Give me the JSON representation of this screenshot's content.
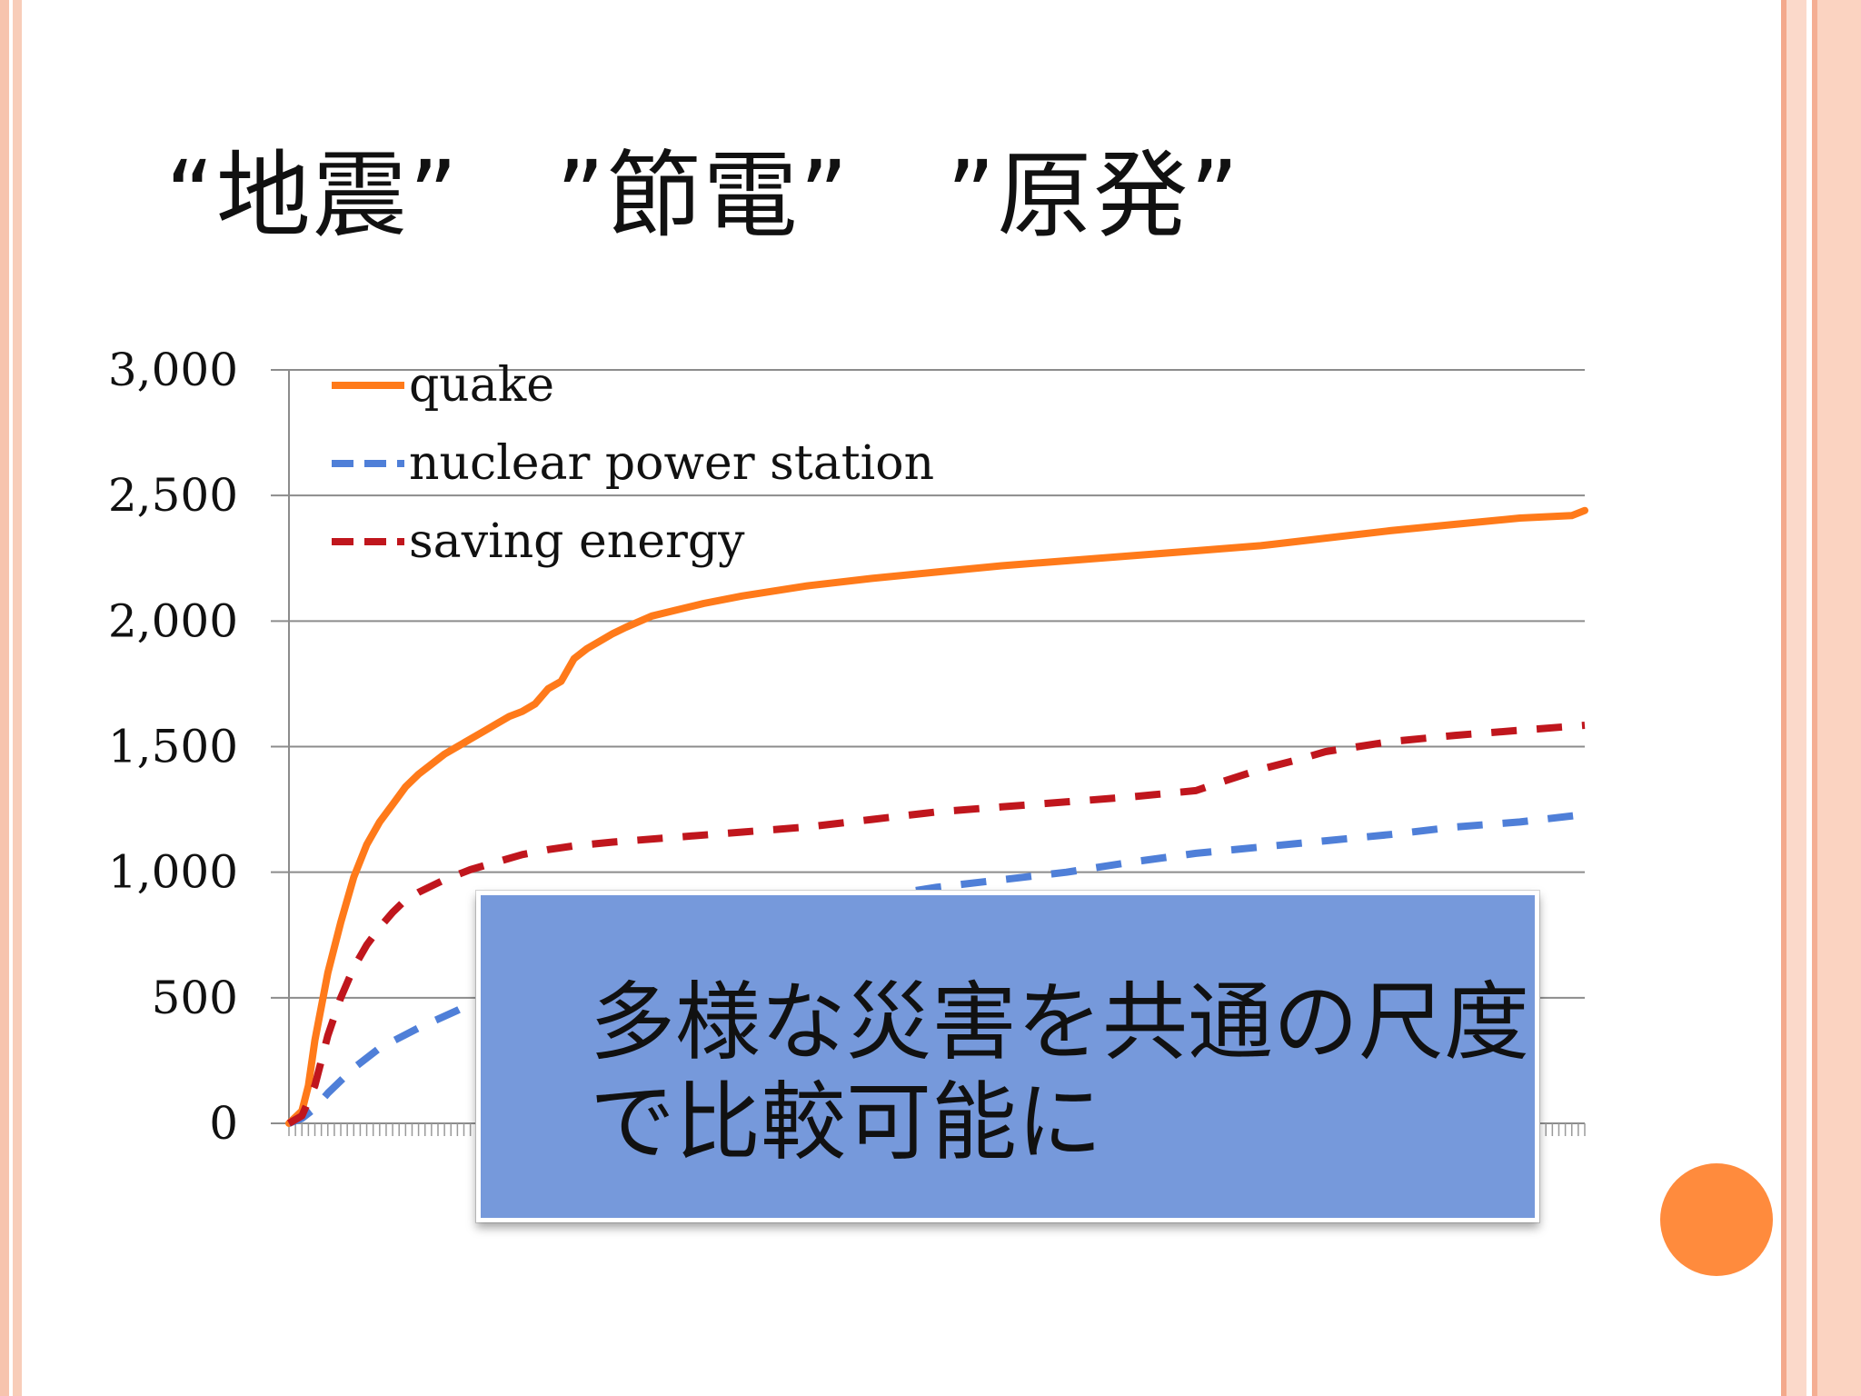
{
  "slide": {
    "title": "“地震”　”節電”　”原発”",
    "callout_text": "多様な災害を共通の尺度\nで比較可能に"
  },
  "colors": {
    "quake": "#ff7a1a",
    "nuclear": "#4f7fd8",
    "saving": "#c0161d",
    "callout_bg": "#7699db",
    "dot": "#ff8b3d"
  },
  "chart_data": {
    "type": "line",
    "title": "",
    "xlabel": "",
    "ylabel": "",
    "ylim": [
      0,
      3000
    ],
    "yticks": [
      0,
      500,
      1000,
      1500,
      2000,
      2500,
      3000
    ],
    "ytick_labels": [
      "0",
      "500",
      "1,000",
      "1,500",
      "2,000",
      "2,500",
      "3,000"
    ],
    "xlim": [
      0,
      100
    ],
    "grid": true,
    "legend": "top-left",
    "series": [
      {
        "name": "quake",
        "style": "solid",
        "color": "#ff7a1a",
        "x": [
          0,
          1,
          1.5,
          2,
          3,
          4,
          5,
          6,
          7,
          8,
          9,
          10,
          11,
          12,
          13,
          14,
          15,
          16,
          17,
          18,
          19,
          20,
          21,
          22,
          23,
          24,
          25,
          26,
          28,
          30,
          32,
          35,
          40,
          45,
          50,
          55,
          60,
          65,
          70,
          75,
          80,
          85,
          90,
          95,
          99,
          100
        ],
        "y": [
          0,
          50,
          150,
          330,
          600,
          800,
          980,
          1110,
          1200,
          1270,
          1340,
          1390,
          1430,
          1470,
          1500,
          1530,
          1560,
          1590,
          1620,
          1640,
          1670,
          1730,
          1760,
          1850,
          1890,
          1920,
          1950,
          1975,
          2020,
          2045,
          2070,
          2100,
          2140,
          2170,
          2195,
          2220,
          2240,
          2260,
          2280,
          2300,
          2330,
          2360,
          2385,
          2410,
          2420,
          2440
        ]
      },
      {
        "name": "nuclear power station",
        "style": "dashed",
        "color": "#4f7fd8",
        "x": [
          0,
          1,
          2,
          3,
          5,
          7,
          10,
          13,
          16,
          20,
          25,
          30,
          35,
          40,
          45,
          50,
          55,
          60,
          65,
          70,
          75,
          80,
          85,
          90,
          95,
          100
        ],
        "y": [
          0,
          20,
          60,
          120,
          220,
          300,
          380,
          450,
          530,
          610,
          680,
          750,
          810,
          860,
          900,
          940,
          970,
          1000,
          1040,
          1075,
          1100,
          1125,
          1150,
          1180,
          1200,
          1230
        ]
      },
      {
        "name": "saving energy",
        "style": "dashed",
        "color": "#c0161d",
        "x": [
          0,
          1,
          2,
          3,
          4,
          5,
          6,
          7,
          8,
          9,
          10,
          12,
          14,
          16,
          18,
          20,
          22,
          25,
          30,
          35,
          40,
          45,
          50,
          55,
          60,
          65,
          70,
          72,
          75,
          78,
          80,
          85,
          90,
          95,
          100
        ],
        "y": [
          0,
          30,
          150,
          350,
          500,
          620,
          710,
          780,
          840,
          890,
          920,
          970,
          1010,
          1040,
          1070,
          1090,
          1105,
          1120,
          1140,
          1160,
          1180,
          1210,
          1240,
          1260,
          1280,
          1300,
          1325,
          1360,
          1410,
          1450,
          1480,
          1520,
          1545,
          1565,
          1585
        ]
      }
    ]
  }
}
